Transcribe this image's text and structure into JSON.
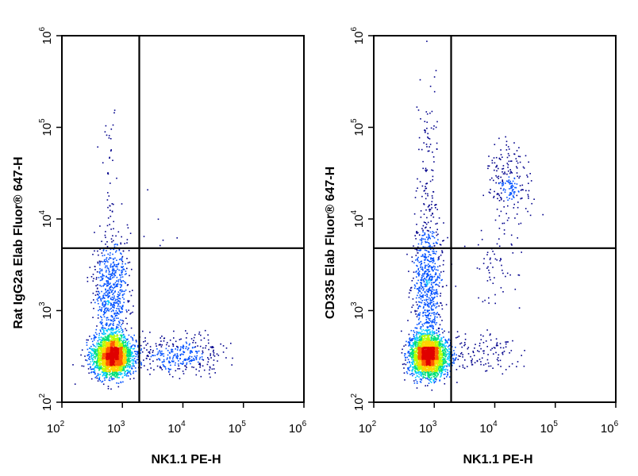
{
  "chart_data": [
    {
      "type": "scatter",
      "subtype": "flow-cytometry density dot plot",
      "xlabel": "NK1.1 PE-H",
      "ylabel": "Rat IgG2a Elab Fluor® 647-H",
      "xscale": "log",
      "yscale": "log",
      "xlim": [
        100,
        1000000
      ],
      "ylim": [
        100,
        1000000
      ],
      "x_ticks": [
        "10",
        "10",
        "10",
        "10",
        "10"
      ],
      "x_tick_exponents": [
        "2",
        "3",
        "4",
        "5",
        "6"
      ],
      "y_ticks": [
        "10",
        "10",
        "10",
        "10",
        "10"
      ],
      "y_tick_exponents": [
        "2",
        "3",
        "4",
        "5",
        "6"
      ],
      "gate_lines": {
        "x": 1900,
        "y": 4800
      },
      "grid": false,
      "color_scale": [
        "#00008b",
        "#0050ff",
        "#00c8ff",
        "#00e07a",
        "#b8ff00",
        "#ffd400",
        "#ff5a00",
        "#e00000"
      ],
      "populations": [
        {
          "region": "lower-left",
          "center": [
            700,
            320
          ],
          "spread_log": [
            0.16,
            0.11
          ],
          "count": 2600
        },
        {
          "region": "lower-left tail",
          "center": [
            650,
            1600
          ],
          "spread_log": [
            0.14,
            0.32
          ],
          "count": 650
        },
        {
          "region": "lower-right",
          "center": [
            9000,
            330
          ],
          "spread_log": [
            0.38,
            0.1
          ],
          "count": 340
        },
        {
          "region": "upper-left sparse",
          "center": [
            620,
            25000
          ],
          "spread_log": [
            0.07,
            0.45
          ],
          "count": 40
        },
        {
          "region": "upper-right sparse",
          "center": [
            4000,
            8000
          ],
          "spread_log": [
            0.25,
            0.15
          ],
          "count": 6
        }
      ]
    },
    {
      "type": "scatter",
      "subtype": "flow-cytometry density dot plot",
      "xlabel": "NK1.1 PE-H",
      "ylabel": "CD335 Elab Fluor® 647-H",
      "xscale": "log",
      "yscale": "log",
      "xlim": [
        100,
        1000000
      ],
      "ylim": [
        100,
        1000000
      ],
      "x_ticks": [
        "10",
        "10",
        "10",
        "10",
        "10"
      ],
      "x_tick_exponents": [
        "2",
        "3",
        "4",
        "5",
        "6"
      ],
      "y_ticks": [
        "10",
        "10",
        "10",
        "10",
        "10"
      ],
      "y_tick_exponents": [
        "2",
        "3",
        "4",
        "5",
        "6"
      ],
      "gate_lines": {
        "x": 1900,
        "y": 4800
      },
      "grid": false,
      "color_scale": [
        "#00008b",
        "#0050ff",
        "#00c8ff",
        "#00e07a",
        "#b8ff00",
        "#ffd400",
        "#ff5a00",
        "#e00000"
      ],
      "populations": [
        {
          "region": "lower-left",
          "center": [
            800,
            320
          ],
          "spread_log": [
            0.15,
            0.11
          ],
          "count": 2600
        },
        {
          "region": "lower-left tail",
          "center": [
            760,
            1800
          ],
          "spread_log": [
            0.13,
            0.36
          ],
          "count": 700
        },
        {
          "region": "lower-right",
          "center": [
            5000,
            350
          ],
          "spread_log": [
            0.35,
            0.1
          ],
          "count": 150
        },
        {
          "region": "upper-left",
          "center": [
            800,
            30000
          ],
          "spread_log": [
            0.08,
            0.5
          ],
          "count": 110
        },
        {
          "region": "upper-right NK cells",
          "center": [
            17000,
            25000
          ],
          "spread_log": [
            0.17,
            0.2
          ],
          "count": 210
        },
        {
          "region": "upper-right bridge",
          "center": [
            10000,
            3000
          ],
          "spread_log": [
            0.18,
            0.25
          ],
          "count": 60
        }
      ]
    }
  ]
}
